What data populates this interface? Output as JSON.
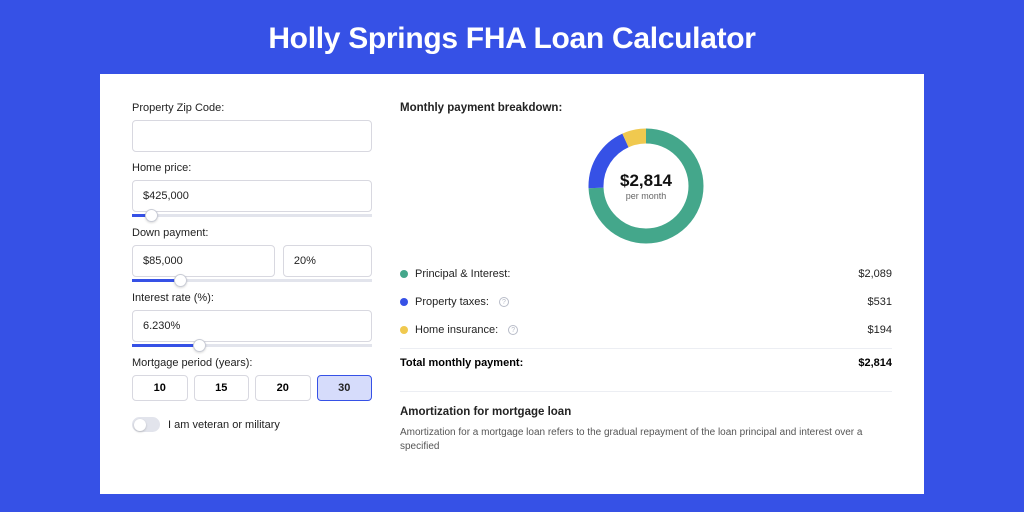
{
  "title": "Holly Springs FHA Loan Calculator",
  "form": {
    "zip": {
      "label": "Property Zip Code:",
      "value": ""
    },
    "home_price": {
      "label": "Home price:",
      "value": "$425,000",
      "slider_pct": 8
    },
    "down_payment": {
      "label": "Down payment:",
      "value": "$85,000",
      "pct_value": "20%",
      "slider_pct": 20
    },
    "interest_rate": {
      "label": "Interest rate (%):",
      "value": "6.230%",
      "slider_pct": 28
    },
    "mortgage_period": {
      "label": "Mortgage period (years):",
      "options": [
        "10",
        "15",
        "20",
        "30"
      ],
      "selected": "30"
    },
    "veteran": {
      "label": "I am veteran or military",
      "enabled": false
    }
  },
  "breakdown": {
    "title": "Monthly payment breakdown:",
    "center_amount": "$2,814",
    "center_sub": "per month",
    "donut": {
      "slices": [
        {
          "key": "principal_interest",
          "value": 2089,
          "color": "#44a78b"
        },
        {
          "key": "property_taxes",
          "value": 531,
          "color": "#3651e6"
        },
        {
          "key": "home_insurance",
          "value": 194,
          "color": "#f0c94f"
        }
      ],
      "stroke_width": 15,
      "radius": 50
    },
    "items": [
      {
        "label": "Principal & Interest:",
        "value": "$2,089",
        "color": "#44a78b",
        "info": false
      },
      {
        "label": "Property taxes:",
        "value": "$531",
        "color": "#3651e6",
        "info": true
      },
      {
        "label": "Home insurance:",
        "value": "$194",
        "color": "#f0c94f",
        "info": true
      }
    ],
    "total_label": "Total monthly payment:",
    "total_value": "$2,814"
  },
  "amort": {
    "title": "Amortization for mortgage loan",
    "text": "Amortization for a mortgage loan refers to the gradual repayment of the loan principal and interest over a specified"
  },
  "colors": {
    "page_bg": "#3651e6",
    "card_bg": "#ffffff",
    "input_border": "#d8d8e0",
    "slider_track": "#e2e4ec"
  }
}
